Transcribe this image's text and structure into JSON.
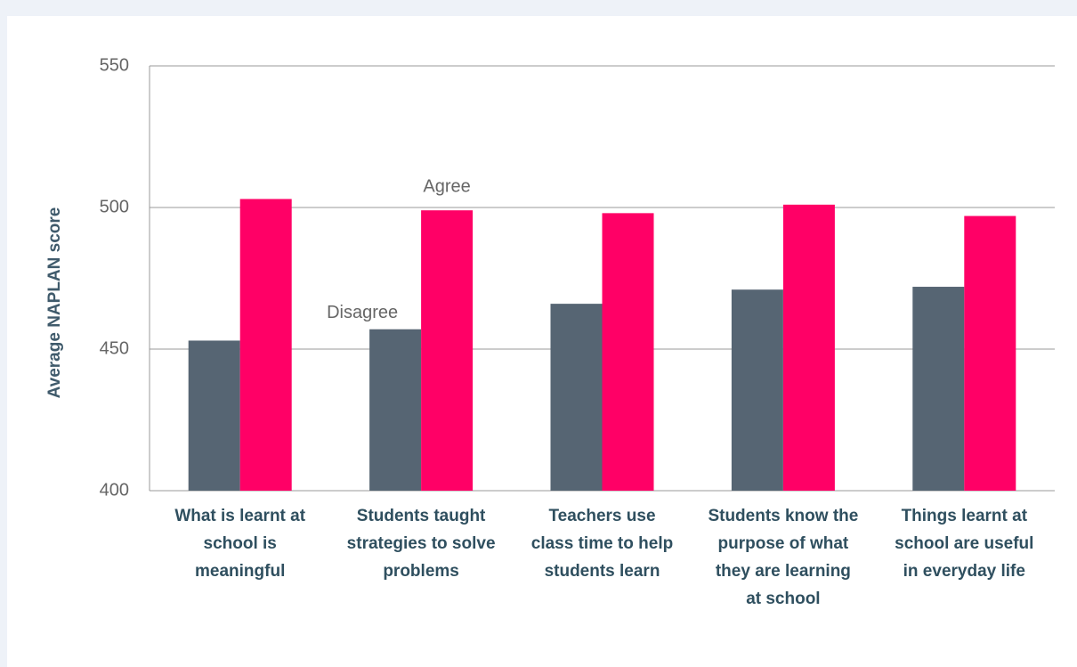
{
  "chart_data": {
    "type": "bar",
    "y_label": "Average NAPLAN score",
    "categories": [
      "What is learnt at school is meaningful",
      "Students taught strategies to solve problems",
      "Teachers use class time to help students learn",
      "Students know the purpose of what they are learning at school",
      "Things learnt at school are useful in everyday life"
    ],
    "series": [
      {
        "name": "Disagree",
        "color": "#566573",
        "values": [
          453,
          457,
          466,
          471,
          472
        ]
      },
      {
        "name": "Agree",
        "color": "#ff0066",
        "values": [
          503,
          499,
          498,
          501,
          497
        ]
      }
    ],
    "ylim": [
      400,
      550
    ],
    "yticks": [
      400,
      450,
      500,
      550
    ],
    "grid": true
  }
}
